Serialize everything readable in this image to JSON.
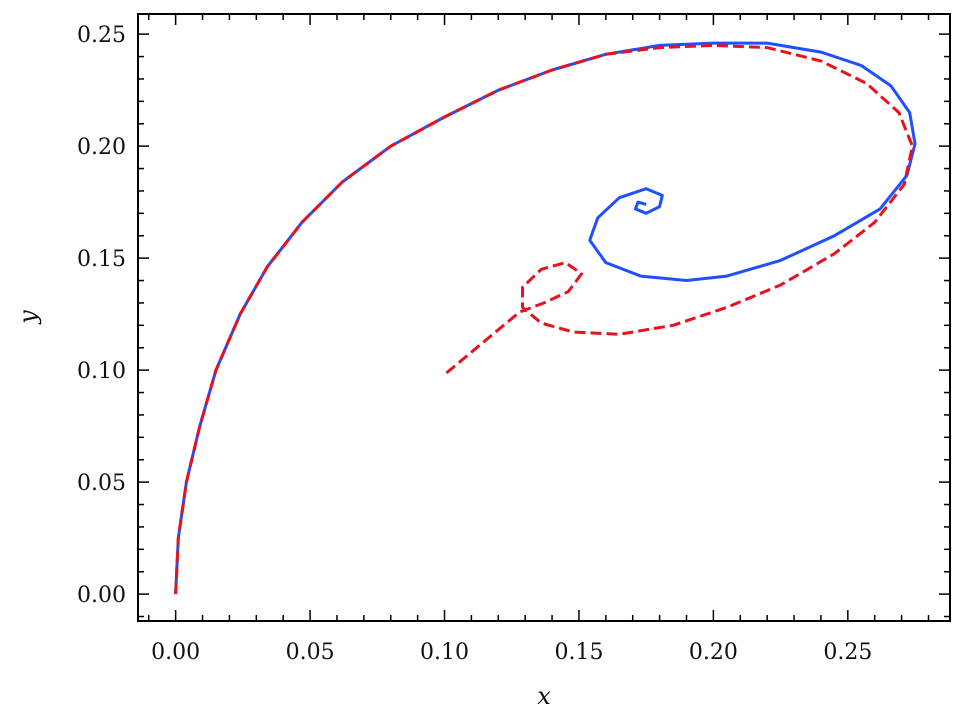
{
  "chart_data": {
    "type": "line",
    "xlabel": "x",
    "ylabel": "y",
    "xlim": [
      -0.014,
      0.288
    ],
    "ylim": [
      -0.012,
      0.259
    ],
    "xticks": [
      0.0,
      0.05,
      0.1,
      0.15,
      0.2,
      0.25
    ],
    "yticks": [
      0.0,
      0.05,
      0.1,
      0.15,
      0.2,
      0.25
    ],
    "xtick_labels": [
      "0.00",
      "0.05",
      "0.10",
      "0.15",
      "0.20",
      "0.25"
    ],
    "ytick_labels": [
      "0.00",
      "0.05",
      "0.10",
      "0.15",
      "0.20",
      "0.25"
    ],
    "grid": false,
    "series": [
      {
        "color": "#1f4fff",
        "style": "solid",
        "points": [
          [
            0.0,
            0.0
          ],
          [
            0.001,
            0.025
          ],
          [
            0.004,
            0.05
          ],
          [
            0.009,
            0.075
          ],
          [
            0.015,
            0.1
          ],
          [
            0.024,
            0.125
          ],
          [
            0.034,
            0.146
          ],
          [
            0.047,
            0.166
          ],
          [
            0.062,
            0.184
          ],
          [
            0.08,
            0.2
          ],
          [
            0.1,
            0.213
          ],
          [
            0.12,
            0.225
          ],
          [
            0.14,
            0.234
          ],
          [
            0.16,
            0.241
          ],
          [
            0.18,
            0.245
          ],
          [
            0.2,
            0.246
          ],
          [
            0.22,
            0.246
          ],
          [
            0.24,
            0.242
          ],
          [
            0.255,
            0.236
          ],
          [
            0.266,
            0.227
          ],
          [
            0.273,
            0.215
          ],
          [
            0.275,
            0.201
          ],
          [
            0.272,
            0.187
          ],
          [
            0.262,
            0.172
          ],
          [
            0.245,
            0.16
          ],
          [
            0.225,
            0.149
          ],
          [
            0.205,
            0.142
          ],
          [
            0.19,
            0.14
          ],
          [
            0.173,
            0.142
          ],
          [
            0.16,
            0.148
          ],
          [
            0.154,
            0.158
          ],
          [
            0.157,
            0.168
          ],
          [
            0.165,
            0.177
          ],
          [
            0.175,
            0.181
          ],
          [
            0.181,
            0.178
          ],
          [
            0.18,
            0.173
          ],
          [
            0.175,
            0.17
          ],
          [
            0.171,
            0.172
          ],
          [
            0.172,
            0.175
          ],
          [
            0.175,
            0.174
          ]
        ]
      },
      {
        "color": "#e8111e",
        "style": "dashed",
        "points": [
          [
            0.0,
            0.0
          ],
          [
            0.001,
            0.025
          ],
          [
            0.004,
            0.05
          ],
          [
            0.009,
            0.075
          ],
          [
            0.015,
            0.1
          ],
          [
            0.024,
            0.125
          ],
          [
            0.034,
            0.146
          ],
          [
            0.047,
            0.166
          ],
          [
            0.062,
            0.184
          ],
          [
            0.08,
            0.2
          ],
          [
            0.1,
            0.213
          ],
          [
            0.12,
            0.225
          ],
          [
            0.14,
            0.234
          ],
          [
            0.16,
            0.241
          ],
          [
            0.18,
            0.244
          ],
          [
            0.2,
            0.245
          ],
          [
            0.22,
            0.244
          ],
          [
            0.24,
            0.238
          ],
          [
            0.257,
            0.228
          ],
          [
            0.269,
            0.215
          ],
          [
            0.274,
            0.2
          ],
          [
            0.271,
            0.183
          ],
          [
            0.26,
            0.166
          ],
          [
            0.245,
            0.152
          ],
          [
            0.225,
            0.138
          ],
          [
            0.205,
            0.128
          ],
          [
            0.185,
            0.12
          ],
          [
            0.165,
            0.116
          ],
          [
            0.148,
            0.117
          ],
          [
            0.136,
            0.121
          ],
          [
            0.129,
            0.128
          ],
          [
            0.129,
            0.137
          ],
          [
            0.136,
            0.145
          ],
          [
            0.145,
            0.148
          ],
          [
            0.151,
            0.143
          ],
          [
            0.146,
            0.135
          ],
          [
            0.137,
            0.13
          ],
          [
            0.128,
            0.126
          ],
          [
            0.115,
            0.113
          ],
          [
            0.1,
            0.098
          ]
        ]
      }
    ]
  }
}
